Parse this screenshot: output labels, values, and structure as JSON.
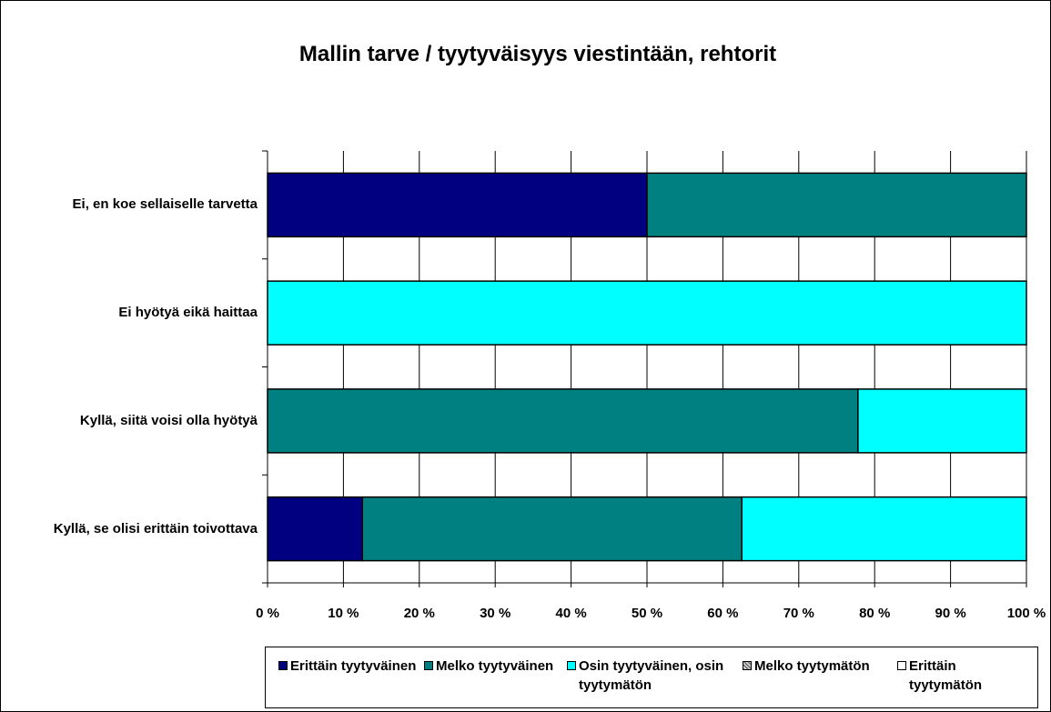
{
  "chart_data": {
    "type": "stacked-bar-horizontal",
    "title": "Mallin tarve / tyytyväisyys viestintään, rehtorit",
    "categories": [
      "Ei, en koe sellaiselle tarvetta",
      "Ei hyötyä eikä haittaa",
      "Kyllä, siitä voisi olla hyötyä",
      "Kyllä, se olisi erittäin toivottava"
    ],
    "series": [
      {
        "name": "Erittäin tyytyväinen",
        "color": "#000080",
        "values": [
          50,
          0,
          0,
          12.5
        ]
      },
      {
        "name": "Melko tyytyväinen",
        "color": "#008080",
        "values": [
          50,
          0,
          77.8,
          50
        ]
      },
      {
        "name": "Osin tyytyväinen, osin tyytymätön",
        "color": "#00ffff",
        "values": [
          0,
          100,
          22.2,
          37.5
        ]
      },
      {
        "name": "Melko tyytymätön",
        "color": "#999999",
        "values": [
          0,
          0,
          0,
          0
        ]
      },
      {
        "name": "Erittäin tyytymätön",
        "color": "#ffffff",
        "values": [
          0,
          0,
          0,
          0
        ]
      }
    ],
    "xlim": [
      0,
      100
    ],
    "xticks": [
      {
        "value": 0,
        "label": "0 %"
      },
      {
        "value": 10,
        "label": "10 %"
      },
      {
        "value": 20,
        "label": "20 %"
      },
      {
        "value": 30,
        "label": "30 %"
      },
      {
        "value": 40,
        "label": "40 %"
      },
      {
        "value": 50,
        "label": "50 %"
      },
      {
        "value": 60,
        "label": "60 %"
      },
      {
        "value": 70,
        "label": "70 %"
      },
      {
        "value": 80,
        "label": "80 %"
      },
      {
        "value": 90,
        "label": "90 %"
      },
      {
        "value": 100,
        "label": "100 %"
      }
    ],
    "grid": true,
    "legend": "bottom"
  }
}
